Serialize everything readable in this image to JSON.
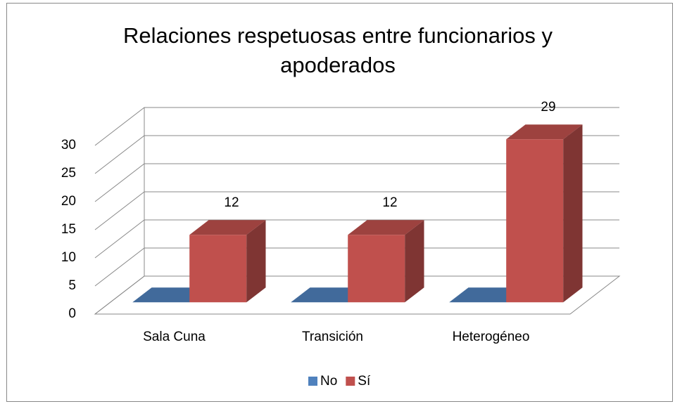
{
  "chart_data": {
    "type": "bar3d",
    "title": "Relaciones respetuosas entre funcionarios y apoderados",
    "categories": [
      "Sala Cuna",
      "Transición",
      "Heterogéneo"
    ],
    "series": [
      {
        "name": "No",
        "color": "#4f81bd",
        "values": [
          0,
          0,
          0
        ]
      },
      {
        "name": "Sí",
        "color": "#c0504d",
        "values": [
          12,
          12,
          29
        ]
      }
    ],
    "ylim": [
      0,
      30
    ],
    "yticks": [
      0,
      5,
      10,
      15,
      20,
      25,
      30
    ],
    "grid": true,
    "legend": "bottom"
  }
}
